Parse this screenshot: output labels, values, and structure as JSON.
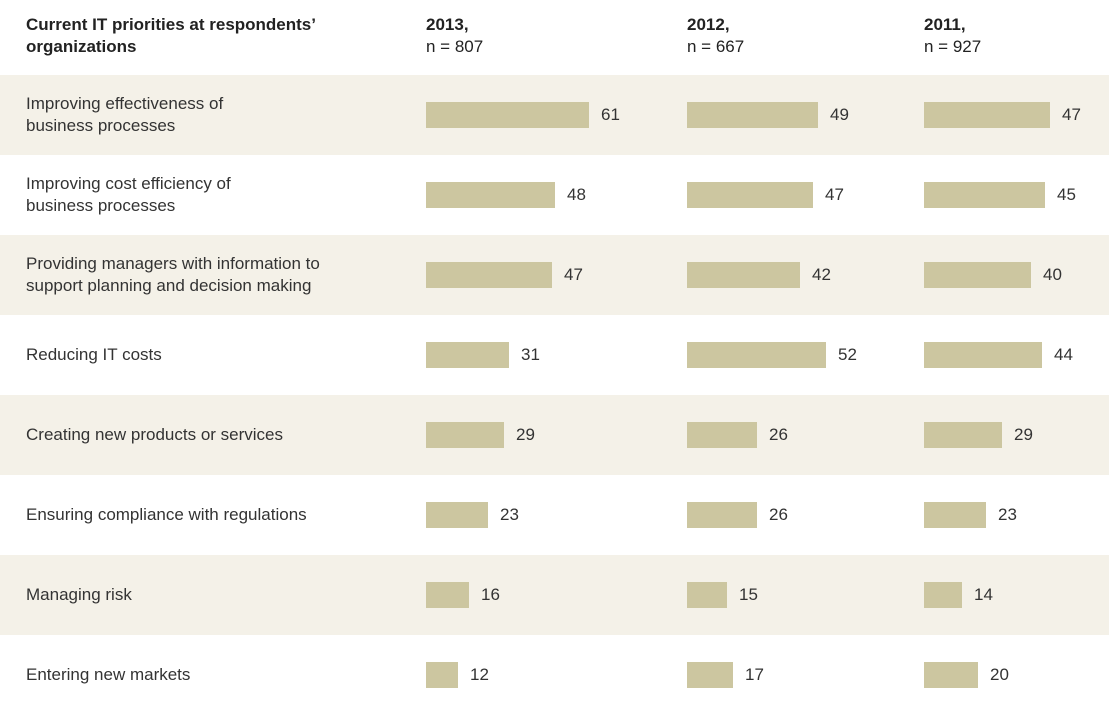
{
  "chart_data": {
    "type": "bar",
    "title": "Current IT priorities at respondents’ organizations",
    "bar_color": "#ccc6a0",
    "band_color": "#f4f1e8",
    "columns": [
      {
        "year": "2013,",
        "n": "n = 807"
      },
      {
        "year": "2012,",
        "n": "n = 667"
      },
      {
        "year": "2011,",
        "n": "n = 927"
      }
    ],
    "categories": [
      "Improving effectiveness of\nbusiness processes",
      "Improving cost efficiency of\nbusiness processes",
      "Providing managers with information to\nsupport planning and decision making",
      "Reducing IT costs",
      "Creating new products or services",
      "Ensuring compliance with regulations",
      "Managing risk",
      "Entering new markets"
    ],
    "series": [
      {
        "values": [
          61,
          48,
          47,
          31,
          29,
          23,
          16,
          12
        ]
      },
      {
        "values": [
          49,
          47,
          42,
          52,
          26,
          26,
          15,
          17
        ]
      },
      {
        "values": [
          47,
          45,
          40,
          44,
          29,
          23,
          14,
          20
        ]
      }
    ]
  }
}
